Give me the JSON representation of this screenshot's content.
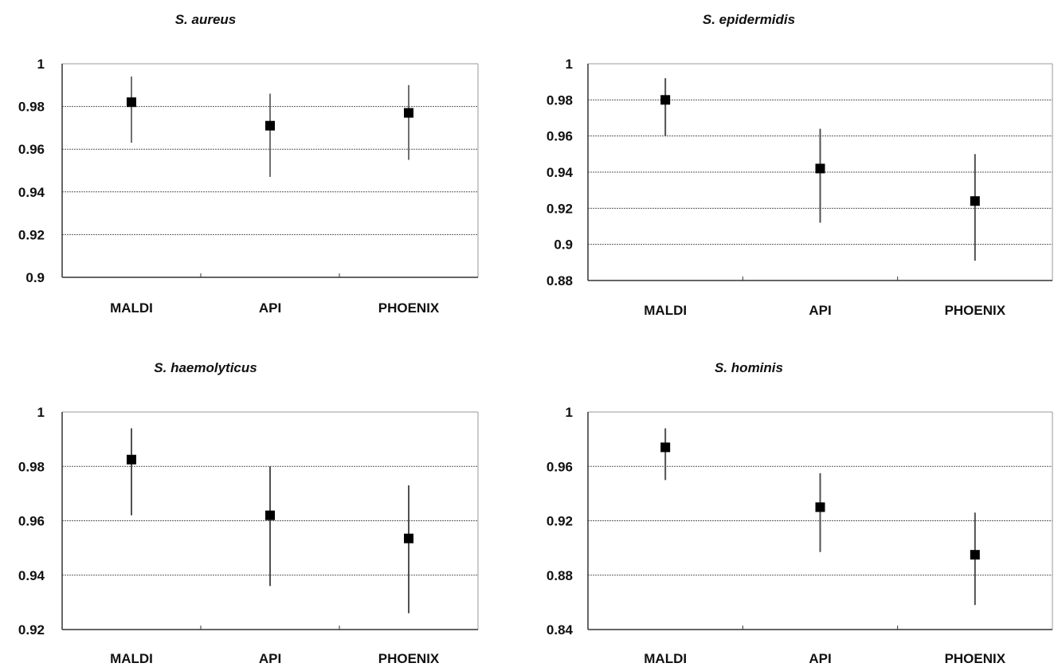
{
  "chart_data": [
    {
      "type": "scatter",
      "title": "S. aureus",
      "categories": [
        "MALDI",
        "API",
        "PHOENIX"
      ],
      "values": [
        0.982,
        0.971,
        0.977
      ],
      "error_low": [
        0.963,
        0.947,
        0.955
      ],
      "error_high": [
        0.994,
        0.986,
        0.99
      ],
      "ylim": [
        0.9,
        1
      ],
      "yticks": [
        "0.9",
        "0.92",
        "0.94",
        "0.96",
        "0.98",
        "1"
      ],
      "grid": true,
      "error_bar_color": "#707070",
      "marker_color": "#000000"
    },
    {
      "type": "scatter",
      "title": "S. epidermidis",
      "categories": [
        "MALDI",
        "API",
        "PHOENIX"
      ],
      "values": [
        0.98,
        0.942,
        0.924
      ],
      "error_low": [
        0.96,
        0.912,
        0.891
      ],
      "error_high": [
        0.992,
        0.964,
        0.95
      ],
      "ylim": [
        0.88,
        1
      ],
      "yticks": [
        "0.88",
        "0.9",
        "0.92",
        "0.94",
        "0.96",
        "0.98",
        "1"
      ],
      "grid": true,
      "error_bar_color": "#505050",
      "marker_color": "#000000"
    },
    {
      "type": "scatter",
      "title": "S. haemolyticus",
      "categories": [
        "MALDI",
        "API",
        "PHOENIX"
      ],
      "values": [
        0.9825,
        0.962,
        0.9535
      ],
      "error_low": [
        0.962,
        0.936,
        0.926
      ],
      "error_high": [
        0.994,
        0.98,
        0.973
      ],
      "ylim": [
        0.92,
        1
      ],
      "yticks": [
        "0.92",
        "0.94",
        "0.96",
        "0.98",
        "1"
      ],
      "grid": true,
      "error_bar_color": "#505050",
      "marker_color": "#000000"
    },
    {
      "type": "scatter",
      "title": "S. hominis",
      "categories": [
        "MALDI",
        "API",
        "PHOENIX"
      ],
      "values": [
        0.974,
        0.93,
        0.895
      ],
      "error_low": [
        0.95,
        0.897,
        0.858
      ],
      "error_high": [
        0.988,
        0.955,
        0.926
      ],
      "ylim": [
        0.84,
        1
      ],
      "yticks": [
        "0.84",
        "0.88",
        "0.92",
        "0.96",
        "1"
      ],
      "grid": true,
      "error_bar_color": "#505050",
      "marker_color": "#000000"
    }
  ]
}
